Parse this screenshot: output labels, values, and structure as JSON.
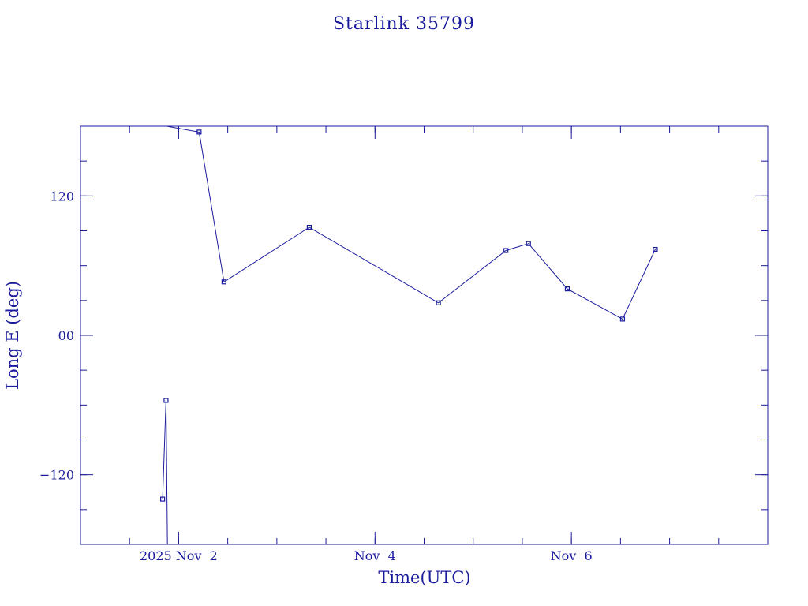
{
  "chart_data": {
    "type": "line",
    "title": "Starlink 35799",
    "xlabel": "Time(UTC)",
    "ylabel": "Long E (deg)",
    "x_axis": {
      "type": "date",
      "range": [
        "2025-11-01T00:00Z",
        "2025-11-08T00:00Z"
      ]
    },
    "ylim": [
      -180,
      180
    ],
    "y_ticks": [
      {
        "value": 120,
        "label": "120"
      },
      {
        "value": 0,
        "label": "00"
      },
      {
        "value": -120,
        "label": "−120"
      }
    ],
    "x_ticks": [
      {
        "value": "2025-11-02T00:00Z",
        "label": "2025 Nov  2"
      },
      {
        "value": "2025-11-04T00:00Z",
        "label": "Nov  4"
      },
      {
        "value": "2025-11-06T00:00Z",
        "label": "Nov  6"
      }
    ],
    "grid": false,
    "color": "#1a1a9c",
    "series": [
      {
        "segments": [
          [
            {
              "t": "2025-11-01T20:05Z",
              "lon": -141
            },
            {
              "t": "2025-11-01T20:55Z",
              "lon": -56
            },
            {
              "t": "2025-11-01T21:15Z",
              "lon": -180
            }
          ],
          [
            {
              "t": "2025-11-01T21:05Z",
              "lon": 180
            },
            {
              "t": "2025-11-02T05:00Z",
              "lon": 175
            },
            {
              "t": "2025-11-02T11:05Z",
              "lon": 46
            },
            {
              "t": "2025-11-03T07:55Z",
              "lon": 93
            },
            {
              "t": "2025-11-04T15:30Z",
              "lon": 28
            },
            {
              "t": "2025-11-05T08:00Z",
              "lon": 73
            },
            {
              "t": "2025-11-05T13:30Z",
              "lon": 79
            },
            {
              "t": "2025-11-05T23:00Z",
              "lon": 40
            },
            {
              "t": "2025-11-06T12:30Z",
              "lon": 14
            },
            {
              "t": "2025-11-06T20:30Z",
              "lon": 74
            }
          ]
        ]
      }
    ]
  }
}
